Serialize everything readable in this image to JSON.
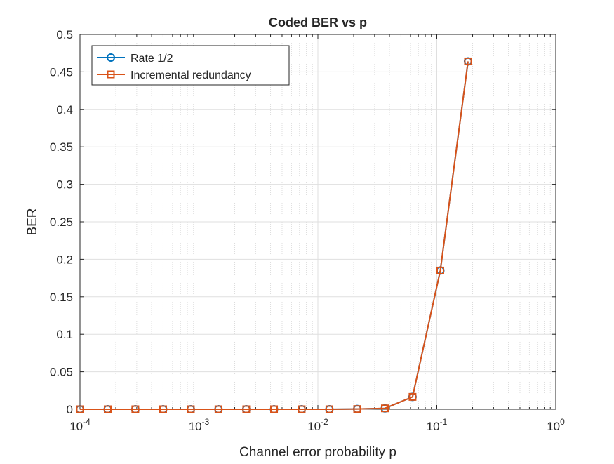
{
  "chart_data": {
    "type": "line",
    "title": "Coded BER vs p",
    "xlabel": "Channel error probability p",
    "ylabel": "BER",
    "xscale": "log",
    "xlim": [
      0.0001,
      1
    ],
    "ylim": [
      0,
      0.5
    ],
    "x_ticks": [
      {
        "value": 0.0001,
        "base": "10",
        "exp": "-4"
      },
      {
        "value": 0.001,
        "base": "10",
        "exp": "-3"
      },
      {
        "value": 0.01,
        "base": "10",
        "exp": "-2"
      },
      {
        "value": 0.1,
        "base": "10",
        "exp": "-1"
      },
      {
        "value": 1,
        "base": "10",
        "exp": "0"
      }
    ],
    "y_ticks": [
      {
        "value": 0,
        "label": "0"
      },
      {
        "value": 0.05,
        "label": "0.05"
      },
      {
        "value": 0.1,
        "label": "0.1"
      },
      {
        "value": 0.15,
        "label": "0.15"
      },
      {
        "value": 0.2,
        "label": "0.2"
      },
      {
        "value": 0.25,
        "label": "0.25"
      },
      {
        "value": 0.3,
        "label": "0.3"
      },
      {
        "value": 0.35,
        "label": "0.35"
      },
      {
        "value": 0.4,
        "label": "0.4"
      },
      {
        "value": 0.45,
        "label": "0.45"
      },
      {
        "value": 0.5,
        "label": "0.5"
      }
    ],
    "grid": true,
    "minor_grid": true,
    "legend_position": "top-left",
    "x": [
      0.0001,
      0.000171,
      0.000292,
      0.0005,
      0.000855,
      0.00146,
      0.0025,
      0.00428,
      0.00731,
      0.0125,
      0.0214,
      0.0366,
      0.0625,
      0.107,
      0.183
    ],
    "series": [
      {
        "name": "Rate 1/2",
        "marker": "circle",
        "color": "#0072BD",
        "values": [
          0,
          0,
          0,
          0,
          0,
          0,
          0,
          0,
          0,
          0,
          0.0003,
          0.0012,
          0.0165,
          0.185,
          0.464
        ]
      },
      {
        "name": "Incremental redundancy",
        "marker": "square",
        "color": "#D95319",
        "values": [
          0,
          0,
          0,
          0,
          0,
          0,
          0,
          0,
          0,
          0,
          0.0003,
          0.0012,
          0.0165,
          0.185,
          0.464
        ]
      }
    ]
  }
}
